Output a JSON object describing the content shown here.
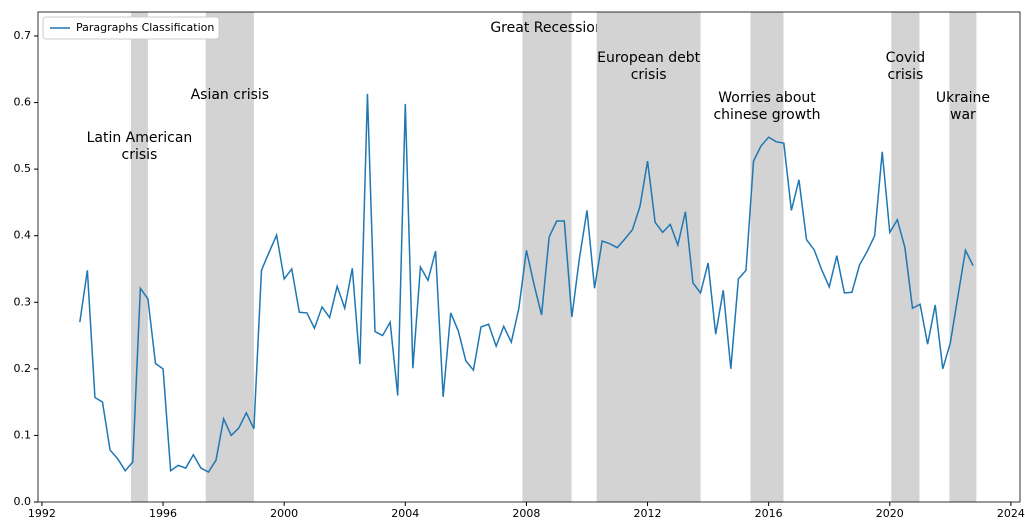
{
  "chart_data": {
    "type": "line",
    "x": [
      1993.25,
      1993.5,
      1993.75,
      1994,
      1994.25,
      1994.5,
      1994.75,
      1995,
      1995.25,
      1995.5,
      1995.75,
      1996,
      1996.25,
      1996.5,
      1996.75,
      1997,
      1997.25,
      1997.5,
      1997.75,
      1998,
      1998.25,
      1998.5,
      1998.75,
      1999,
      1999.25,
      1999.5,
      1999.75,
      2000,
      2000.25,
      2000.5,
      2000.75,
      2001,
      2001.25,
      2001.5,
      2001.75,
      2002,
      2002.25,
      2002.5,
      2002.75,
      2003,
      2003.25,
      2003.5,
      2003.75,
      2004,
      2004.25,
      2004.5,
      2004.75,
      2005,
      2005.25,
      2005.5,
      2005.75,
      2006,
      2006.25,
      2006.5,
      2006.75,
      2007,
      2007.25,
      2007.5,
      2007.75,
      2008,
      2008.25,
      2008.5,
      2008.75,
      2009,
      2009.25,
      2009.5,
      2009.75,
      2010,
      2010.25,
      2010.5,
      2010.75,
      2011,
      2011.25,
      2011.5,
      2011.75,
      2012,
      2012.25,
      2012.5,
      2012.75,
      2013,
      2013.25,
      2013.5,
      2013.75,
      2014,
      2014.25,
      2014.5,
      2014.75,
      2015,
      2015.25,
      2015.5,
      2015.75,
      2016,
      2016.25,
      2016.5,
      2016.75,
      2017,
      2017.25,
      2017.5,
      2017.75,
      2018,
      2018.25,
      2018.5,
      2018.75,
      2019,
      2019.25,
      2019.5,
      2019.75,
      2020,
      2020.25,
      2020.5,
      2020.75,
      2021,
      2021.25,
      2021.5,
      2021.75,
      2022,
      2022.25,
      2022.5,
      2022.75
    ],
    "series": [
      {
        "name": "Paragraphs Classification",
        "color": "#1f77b4",
        "values": [
          0.27,
          0.348,
          0.157,
          0.15,
          0.078,
          0.065,
          0.047,
          0.06,
          0.321,
          0.305,
          0.208,
          0.2,
          0.047,
          0.055,
          0.051,
          0.071,
          0.051,
          0.045,
          0.063,
          0.125,
          0.1,
          0.111,
          0.134,
          0.11,
          0.348,
          0.375,
          0.401,
          0.335,
          0.35,
          0.285,
          0.284,
          0.261,
          0.293,
          0.277,
          0.324,
          0.291,
          0.351,
          0.207,
          0.613,
          0.256,
          0.25,
          0.27,
          0.16,
          0.598,
          0.201,
          0.353,
          0.333,
          0.377,
          0.158,
          0.284,
          0.257,
          0.212,
          0.198,
          0.263,
          0.267,
          0.234,
          0.264,
          0.24,
          0.291,
          0.378,
          0.327,
          0.281,
          0.398,
          0.422,
          0.422,
          0.278,
          0.366,
          0.438,
          0.321,
          0.392,
          0.388,
          0.382,
          0.395,
          0.409,
          0.444,
          0.512,
          0.42,
          0.405,
          0.417,
          0.386,
          0.436,
          0.329,
          0.314,
          0.359,
          0.252,
          0.318,
          0.2,
          0.335,
          0.348,
          0.512,
          0.535,
          0.548,
          0.541,
          0.539,
          0.438,
          0.484,
          0.394,
          0.379,
          0.349,
          0.323,
          0.37,
          0.314,
          0.315,
          0.356,
          0.376,
          0.4,
          0.526,
          0.405,
          0.424,
          0.382,
          0.291,
          0.297,
          0.237,
          0.296,
          0.2,
          0.239,
          0.309,
          0.378,
          0.355
        ]
      }
    ],
    "events": [
      {
        "start": 1994.94,
        "end": 1995.5,
        "label": [
          "Latin American",
          "crisis"
        ]
      },
      {
        "start": 1997.41,
        "end": 1999.0,
        "label": [
          "Asian crisis"
        ]
      },
      {
        "start": 2007.87,
        "end": 2009.49,
        "label": [
          "Great Recession"
        ]
      },
      {
        "start": 2010.32,
        "end": 2013.75,
        "label": [
          "European debt",
          "crisis"
        ]
      },
      {
        "start": 2015.4,
        "end": 2016.49,
        "label": [
          "Worries about",
          "chinese growth"
        ]
      },
      {
        "start": 2020.05,
        "end": 2020.98,
        "label": [
          "Covid",
          "crisis"
        ]
      },
      {
        "start": 2021.97,
        "end": 2022.86,
        "label": [
          "Ukraine",
          "war"
        ]
      }
    ],
    "xlim": [
      1991.87,
      2024.3
    ],
    "ylim": [
      0,
      0.736
    ],
    "xticks": [
      1992,
      1996,
      2000,
      2004,
      2008,
      2012,
      2016,
      2020,
      2024
    ],
    "yticks": [
      {
        "value": 0,
        "label": "0.0"
      },
      0.1,
      0.2,
      0.3,
      0.4,
      0.5,
      0.6,
      0.7
    ],
    "legend": "upper left"
  }
}
